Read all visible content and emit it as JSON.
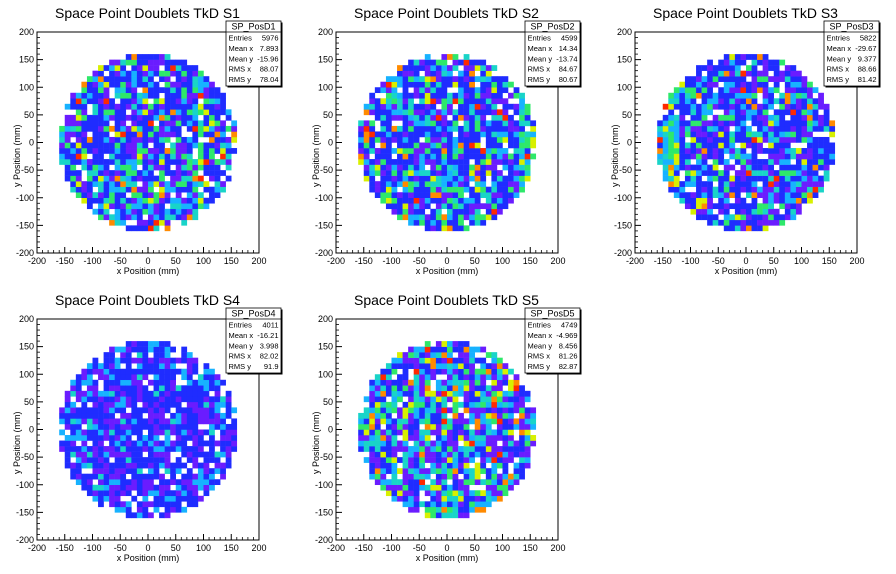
{
  "chart_data": [
    {
      "type": "heatmap",
      "title": "Space Point Doublets TkD S1",
      "xlabel": "x Position (mm)",
      "ylabel": "y Position (mm)",
      "xlim": [
        -200,
        200
      ],
      "ylim": [
        -200,
        200
      ],
      "xticks": [
        -200,
        -150,
        -100,
        -50,
        0,
        50,
        100,
        150,
        200
      ],
      "yticks": [
        -200,
        -150,
        -100,
        -50,
        0,
        50,
        100,
        150,
        200
      ],
      "disk_radius": 160,
      "bins": 40,
      "colors": {
        "blue": "#1f2cff",
        "purple": "#6a1cff",
        "cyan": "#17b2ff",
        "teal": "#19d4c8",
        "green": "#2ee86a",
        "yellow": "#d8f000",
        "orange": "#ff8a00",
        "red": "#ff2a00"
      },
      "feature": "vertical band near x=95",
      "stats": {
        "name": "SP_PosD1",
        "rows": [
          {
            "label": "Entries",
            "value": "5976"
          },
          {
            "label": "Mean x",
            "value": "7.893"
          },
          {
            "label": "Mean y",
            "value": "-15.96"
          },
          {
            "label": "RMS x",
            "value": "88.07"
          },
          {
            "label": "RMS y",
            "value": "78.04"
          }
        ]
      }
    },
    {
      "type": "heatmap",
      "title": "Space Point Doublets TkD S2",
      "xlabel": "x Position (mm)",
      "ylabel": "y Position (mm)",
      "xlim": [
        -200,
        200
      ],
      "ylim": [
        -200,
        200
      ],
      "xticks": [
        -200,
        -150,
        -100,
        -50,
        0,
        50,
        100,
        150,
        200
      ],
      "yticks": [
        -200,
        -150,
        -100,
        -50,
        0,
        50,
        100,
        150,
        200
      ],
      "disk_radius": 160,
      "bins": 40,
      "feature": "mixed, green/cyan on right edge",
      "stats": {
        "name": "SP_PosD2",
        "rows": [
          {
            "label": "Entries",
            "value": "4599"
          },
          {
            "label": "Mean x",
            "value": "14.34"
          },
          {
            "label": "Mean y",
            "value": "-13.74"
          },
          {
            "label": "RMS x",
            "value": "84.67"
          },
          {
            "label": "RMS y",
            "value": "80.67"
          }
        ]
      }
    },
    {
      "type": "heatmap",
      "title": "Space Point Doublets TkD S3",
      "xlabel": "x Position (mm)",
      "ylabel": "y Position (mm)",
      "xlim": [
        -200,
        200
      ],
      "ylim": [
        -200,
        200
      ],
      "xticks": [
        -200,
        -150,
        -100,
        -50,
        0,
        50,
        100,
        150,
        200
      ],
      "yticks": [
        -200,
        -150,
        -100,
        -50,
        0,
        50,
        100,
        150,
        200
      ],
      "disk_radius": 160,
      "bins": 40,
      "feature": "band near left edge x=-135",
      "stats": {
        "name": "SP_PosD3",
        "rows": [
          {
            "label": "Entries",
            "value": "5822"
          },
          {
            "label": "Mean x",
            "value": "-29.67"
          },
          {
            "label": "Mean y",
            "value": "9.377"
          },
          {
            "label": "RMS x",
            "value": "88.66"
          },
          {
            "label": "RMS y",
            "value": "81.42"
          }
        ]
      }
    },
    {
      "type": "heatmap",
      "title": "Space Point Doublets TkD S4",
      "xlabel": "x Position (mm)",
      "ylabel": "y Position (mm)",
      "xlim": [
        -200,
        200
      ],
      "ylim": [
        -200,
        200
      ],
      "xticks": [
        -200,
        -150,
        -100,
        -50,
        0,
        50,
        100,
        150,
        200
      ],
      "yticks": [
        -200,
        -150,
        -100,
        -50,
        0,
        50,
        100,
        150,
        200
      ],
      "disk_radius": 160,
      "bins": 40,
      "feature": "mostly blue/purple, diagonal band upper left",
      "stats": {
        "name": "SP_PosD4",
        "rows": [
          {
            "label": "Entries",
            "value": "4011"
          },
          {
            "label": "Mean x",
            "value": "-16.21"
          },
          {
            "label": "Mean y",
            "value": "3.998"
          },
          {
            "label": "RMS x",
            "value": "82.02"
          },
          {
            "label": "RMS y",
            "value": "91.9"
          }
        ]
      }
    },
    {
      "type": "heatmap",
      "title": "Space Point Doublets TkD S5",
      "xlabel": "x Position (mm)",
      "ylabel": "y Position (mm)",
      "xlim": [
        -200,
        200
      ],
      "ylim": [
        -200,
        200
      ],
      "xticks": [
        -200,
        -150,
        -100,
        -50,
        0,
        50,
        100,
        150,
        200
      ],
      "yticks": [
        -200,
        -150,
        -100,
        -50,
        0,
        50,
        100,
        150,
        200
      ],
      "disk_radius": 160,
      "bins": 40,
      "feature": "more green/yellow, hot spots around x=-50",
      "stats": {
        "name": "SP_PosD5",
        "rows": [
          {
            "label": "Entries",
            "value": "4749"
          },
          {
            "label": "Mean x",
            "value": "-4.969"
          },
          {
            "label": "Mean y",
            "value": "8.456"
          },
          {
            "label": "RMS x",
            "value": "81.26"
          },
          {
            "label": "RMS y",
            "value": "82.87"
          }
        ]
      }
    }
  ]
}
